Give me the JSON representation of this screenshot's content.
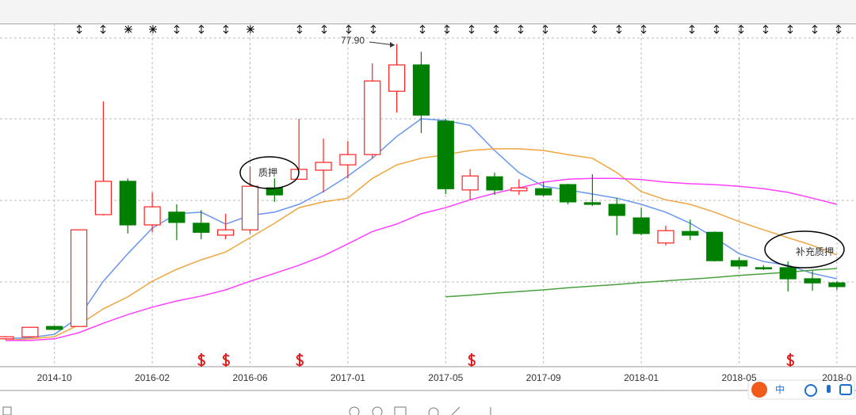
{
  "chart_data": {
    "type": "candlestick",
    "categories": [
      null,
      null,
      "2014-10",
      null,
      null,
      null,
      "2016-02",
      null,
      null,
      null,
      "2016-06",
      null,
      null,
      null,
      "2017-01",
      null,
      null,
      null,
      "2017-05",
      null,
      null,
      null,
      "2017-09",
      null,
      null,
      null,
      "2018-01",
      null,
      null,
      null,
      "2018-05",
      null,
      null,
      null,
      "2018-0"
    ],
    "open": [
      6.2,
      6.7,
      9.2,
      9.2,
      36.4,
      44.5,
      33.9,
      37.0,
      34.3,
      31.4,
      32.7,
      42.9,
      45.0,
      47.2,
      48.5,
      51.0,
      66.4,
      72.8,
      59.1,
      42.4,
      45.6,
      42.2,
      42.7,
      43.7,
      39.3,
      38.9,
      35.6,
      29.5,
      32.3,
      32.1,
      25.2,
      23.5,
      23.5,
      20.8,
      19.8
    ],
    "high": [
      6.9,
      9.0,
      9.4,
      32.7,
      63.9,
      45.2,
      41.8,
      38.9,
      37.5,
      36.6,
      48.1,
      45.2,
      59.7,
      54.9,
      54.3,
      73.2,
      77.9,
      76.0,
      59.7,
      47.5,
      46.6,
      45.0,
      44.3,
      43.9,
      46.2,
      40.4,
      38.1,
      33.7,
      35.2,
      32.3,
      26.0,
      24.1,
      25.0,
      22.7,
      20.2
    ],
    "low": [
      6.0,
      6.6,
      8.3,
      9.2,
      36.2,
      31.8,
      32.1,
      30.2,
      30.4,
      30.4,
      31.8,
      39.5,
      45.0,
      41.8,
      45.2,
      50.1,
      61.2,
      56.2,
      41.4,
      40.0,
      41.2,
      41.2,
      40.8,
      38.9,
      38.5,
      31.4,
      31.4,
      28.9,
      30.2,
      25.0,
      23.1,
      22.9,
      17.7,
      17.9,
      18.1
    ],
    "close": [
      6.7,
      9.0,
      8.5,
      32.7,
      44.5,
      33.9,
      38.3,
      34.5,
      32.1,
      32.7,
      43.3,
      41.2,
      47.4,
      49.1,
      51.0,
      68.9,
      72.8,
      60.6,
      42.7,
      45.8,
      42.4,
      42.9,
      41.2,
      39.5,
      38.9,
      36.2,
      31.8,
      32.5,
      31.4,
      25.2,
      23.9,
      23.3,
      20.8,
      19.8,
      18.9
    ],
    "up_color": "#ff2020",
    "down_color": "#008000",
    "lines": [
      {
        "color": "#6a96f0",
        "values": [
          6.2,
          6.5,
          7.3,
          11.5,
          20.2,
          26.9,
          33.1,
          36.6,
          37.0,
          34.1,
          36.2,
          37.0,
          38.9,
          42.0,
          45.8,
          50.1,
          55.4,
          59.7,
          59.3,
          58.1,
          52.0,
          46.6,
          43.3,
          42.4,
          41.4,
          40.4,
          38.9,
          37.0,
          34.3,
          30.8,
          26.9,
          25.0,
          24.1,
          22.1,
          20.8
        ]
      },
      {
        "color": "#f0a640",
        "values": [
          5.8,
          6.2,
          6.7,
          9.6,
          13.5,
          16.4,
          20.2,
          23.1,
          25.4,
          27.3,
          30.8,
          34.3,
          38.1,
          39.5,
          40.4,
          45.2,
          48.5,
          50.1,
          51.0,
          52.0,
          52.4,
          52.4,
          52.0,
          51.0,
          50.1,
          46.6,
          42.0,
          40.0,
          38.9,
          37.0,
          34.7,
          32.7,
          30.8,
          28.9,
          26.6
        ]
      },
      {
        "color": "#ff40ff",
        "values": [
          5.8,
          5.8,
          6.2,
          7.7,
          10.0,
          12.1,
          13.9,
          15.4,
          16.6,
          18.1,
          20.2,
          22.1,
          24.1,
          26.4,
          29.3,
          32.3,
          34.1,
          36.6,
          38.1,
          40.0,
          41.6,
          42.9,
          44.3,
          45.0,
          45.2,
          45.2,
          44.9,
          44.3,
          43.9,
          43.7,
          43.3,
          42.7,
          41.8,
          40.4,
          38.9
        ]
      },
      {
        "color": "#4aa040",
        "values": [
          null,
          null,
          null,
          null,
          null,
          null,
          null,
          null,
          null,
          null,
          null,
          null,
          null,
          null,
          null,
          null,
          null,
          null,
          16.4,
          16.8,
          17.3,
          17.7,
          18.1,
          18.6,
          19.0,
          19.4,
          19.9,
          20.3,
          20.7,
          21.1,
          21.6,
          22.0,
          22.4,
          22.9,
          23.3
        ]
      }
    ],
    "ylim": [
      0,
      83
    ],
    "grid": true,
    "annotations": [
      {
        "text": "77.90"
      },
      {
        "text": "质押"
      },
      {
        "text": "补充质押"
      }
    ]
  },
  "toolbar": {
    "ime": "中"
  }
}
